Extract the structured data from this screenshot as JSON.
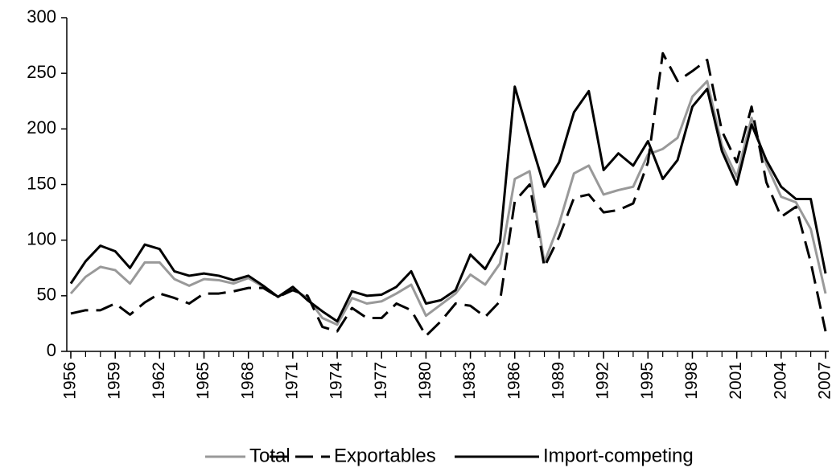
{
  "chart_data": {
    "type": "line",
    "x": [
      1956,
      1957,
      1958,
      1959,
      1960,
      1961,
      1962,
      1963,
      1964,
      1965,
      1966,
      1967,
      1968,
      1969,
      1970,
      1971,
      1972,
      1973,
      1974,
      1975,
      1976,
      1977,
      1978,
      1979,
      1980,
      1981,
      1982,
      1983,
      1984,
      1985,
      1986,
      1987,
      1988,
      1989,
      1990,
      1991,
      1992,
      1993,
      1994,
      1995,
      1996,
      1997,
      1998,
      1999,
      2000,
      2001,
      2002,
      2003,
      2004,
      2005,
      2006,
      2007
    ],
    "xlim": [
      1956,
      2007
    ],
    "xticks": [
      1956,
      1959,
      1962,
      1965,
      1968,
      1971,
      1974,
      1977,
      1980,
      1983,
      1986,
      1989,
      1992,
      1995,
      1998,
      2001,
      2004,
      2007
    ],
    "ylim": [
      0,
      300
    ],
    "yticks": [
      0,
      50,
      100,
      150,
      200,
      250,
      300
    ],
    "legend": "bottom",
    "series": [
      {
        "name": "Total",
        "color": "#999999",
        "style": "solid",
        "values": [
          52,
          67,
          76,
          73,
          61,
          80,
          80,
          65,
          59,
          65,
          64,
          61,
          66,
          58,
          49,
          56,
          48,
          30,
          24,
          48,
          43,
          45,
          52,
          60,
          32,
          42,
          52,
          69,
          60,
          79,
          155,
          162,
          80,
          115,
          160,
          167,
          141,
          145,
          148,
          177,
          182,
          192,
          229,
          243,
          185,
          157,
          210,
          168,
          139,
          134,
          110,
          52
        ]
      },
      {
        "name": "Exportables",
        "color": "#000000",
        "style": "dashed",
        "values": [
          34,
          37,
          37,
          43,
          33,
          44,
          52,
          48,
          43,
          52,
          52,
          54,
          57,
          57,
          49,
          55,
          50,
          22,
          18,
          39,
          30,
          30,
          43,
          37,
          14,
          27,
          43,
          41,
          31,
          45,
          135,
          150,
          76,
          103,
          138,
          141,
          125,
          127,
          133,
          170,
          268,
          243,
          252,
          262,
          198,
          170,
          220,
          152,
          121,
          130,
          80,
          18
        ]
      },
      {
        "name": "Import-competing",
        "color": "#000000",
        "style": "solid",
        "values": [
          61,
          81,
          95,
          90,
          75,
          96,
          92,
          72,
          68,
          70,
          68,
          64,
          68,
          59,
          49,
          58,
          46,
          36,
          27,
          54,
          50,
          51,
          58,
          72,
          43,
          46,
          55,
          87,
          74,
          98,
          238,
          192,
          148,
          170,
          215,
          234,
          163,
          178,
          167,
          189,
          155,
          172,
          220,
          236,
          180,
          150,
          204,
          172,
          148,
          137,
          137,
          70
        ]
      }
    ]
  }
}
